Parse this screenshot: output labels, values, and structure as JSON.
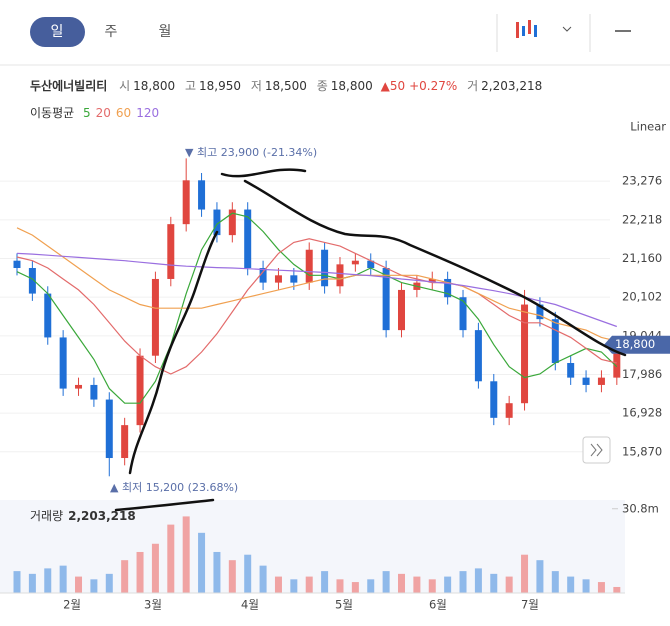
{
  "tabs": [
    "일",
    "주",
    "월"
  ],
  "quote": {
    "name": "두산에너빌리티",
    "open_label": "시",
    "open": "18,800",
    "high_label": "고",
    "high": "18,950",
    "low_label": "저",
    "low": "18,500",
    "close_label": "종",
    "close": "18,800",
    "change": "▲50",
    "change_pct": "+0.27%",
    "volume_label": "거",
    "volume": "2,203,218"
  },
  "ma_label": "이동평균",
  "scale_label": "Linear",
  "chart_data": {
    "type": "candlestick",
    "ylim": [
      14688,
      24403
    ],
    "yticks": [
      {
        "value": 23276,
        "label": "23,276"
      },
      {
        "value": 22218,
        "label": "22,218"
      },
      {
        "value": 21160,
        "label": "21,160"
      },
      {
        "value": 20102,
        "label": "20,102"
      },
      {
        "value": 19044,
        "label": "19,044"
      },
      {
        "value": 17986,
        "label": "17,986"
      },
      {
        "value": 16928,
        "label": "16,928"
      },
      {
        "value": 15870,
        "label": "15,870"
      }
    ],
    "grid": true,
    "up_color": "#e0463f",
    "down_color": "#1f6fd6",
    "x_labels": [
      {
        "value": 3.58,
        "label": "2월"
      },
      {
        "value": 8.84,
        "label": "3월"
      },
      {
        "value": 15.15,
        "label": "4월"
      },
      {
        "value": 21.26,
        "label": "5월"
      },
      {
        "value": 27.37,
        "label": "6월"
      },
      {
        "value": 33.35,
        "label": "7월"
      }
    ],
    "candles": {
      "open": [
        21100,
        20900,
        20200,
        19000,
        17600,
        17700,
        17300,
        15700,
        16600,
        18500,
        20600,
        22100,
        23300,
        22500,
        21800,
        22500,
        20900,
        20500,
        20700,
        20500,
        21400,
        20400,
        21000,
        21100,
        20900,
        19200,
        20300,
        20500,
        20600,
        20100,
        19200,
        17800,
        16800,
        17200,
        19900,
        19500,
        18300,
        17900,
        17700,
        17900
      ],
      "high": [
        21300,
        21100,
        20400,
        19200,
        17900,
        17900,
        17500,
        16800,
        18700,
        20800,
        22300,
        23900,
        23500,
        22700,
        22700,
        22700,
        21100,
        20900,
        20900,
        21600,
        21600,
        21200,
        21300,
        21300,
        21100,
        20500,
        20700,
        20800,
        20800,
        20300,
        19400,
        18000,
        17400,
        20300,
        20100,
        19700,
        18500,
        18100,
        18100,
        18950
      ],
      "low": [
        20700,
        20000,
        18800,
        17400,
        17400,
        17100,
        15200,
        15500,
        16400,
        18300,
        20400,
        21900,
        22300,
        21600,
        21600,
        20700,
        20300,
        20300,
        20300,
        20300,
        20200,
        20200,
        20800,
        20700,
        19000,
        19000,
        20100,
        20300,
        19900,
        19000,
        17600,
        16600,
        16600,
        17000,
        19300,
        18100,
        17700,
        17500,
        17500,
        17700
      ],
      "close": [
        20900,
        20200,
        19000,
        17600,
        17700,
        17300,
        15700,
        16600,
        18500,
        20600,
        22100,
        23300,
        22500,
        21800,
        22500,
        20900,
        20500,
        20700,
        20500,
        21400,
        20400,
        21000,
        21100,
        20900,
        19200,
        20300,
        20500,
        20600,
        20100,
        19200,
        17800,
        16800,
        17200,
        19900,
        19500,
        18300,
        17900,
        17700,
        17900,
        18800
      ]
    },
    "series": [
      {
        "name": "5",
        "color": "#3aa83a",
        "values": [
          20800,
          20600,
          20200,
          19600,
          19000,
          18400,
          17600,
          17200,
          17200,
          17800,
          18800,
          20200,
          21400,
          22100,
          22400,
          22300,
          21900,
          21400,
          21000,
          20700,
          20700,
          20600,
          20700,
          20900,
          20700,
          20500,
          20400,
          20300,
          20200,
          20000,
          19500,
          18800,
          18200,
          17900,
          18000,
          18300,
          18500,
          18700,
          18600,
          18200
        ]
      },
      {
        "name": "20",
        "color": "#e36b6b",
        "values": [
          21200,
          21100,
          20900,
          20600,
          20300,
          19900,
          19400,
          18900,
          18500,
          18200,
          18000,
          18200,
          18600,
          19100,
          19700,
          20300,
          20800,
          21300,
          21600,
          21700,
          21600,
          21500,
          21300,
          21100,
          20900,
          20700,
          20600,
          20500,
          20500,
          20400,
          20200,
          19900,
          19600,
          19400,
          19400,
          19200,
          19000,
          18700,
          18400,
          18300
        ]
      },
      {
        "name": "60",
        "color": "#f0a050",
        "values": [
          22000,
          21800,
          21500,
          21200,
          20900,
          20600,
          20300,
          20100,
          19900,
          19800,
          19800,
          19800,
          19800,
          19900,
          20000,
          20100,
          20200,
          20300,
          20400,
          20500,
          20600,
          20600,
          20700,
          20700,
          20700,
          20700,
          20700,
          20600,
          20500,
          20400,
          20200,
          20000,
          19800,
          19700,
          19600,
          19400,
          19300,
          19200,
          19000,
          18900
        ]
      },
      {
        "name": "120",
        "color": "#9a6fe0",
        "values": [
          21300,
          21280,
          21250,
          21220,
          21190,
          21160,
          21130,
          21100,
          21060,
          21020,
          20980,
          20950,
          20930,
          20910,
          20900,
          20880,
          20860,
          20840,
          20820,
          20800,
          20780,
          20750,
          20720,
          20690,
          20650,
          20600,
          20560,
          20520,
          20480,
          20420,
          20350,
          20280,
          20200,
          20100,
          20000,
          19900,
          19750,
          19600,
          19450,
          19300
        ]
      }
    ],
    "last_price": {
      "value": 18800,
      "label": "18,800"
    },
    "annotations": {
      "high": "▼ 최고 23,900 (-21.34%)",
      "low": "▲ 최저 15,200 (23.68%)"
    },
    "volume": {
      "label": "거래량",
      "value_text": "2,203,218",
      "ylim": [
        0,
        34000000
      ],
      "yticks": [
        {
          "value": 30800000,
          "label": "30.8m"
        }
      ],
      "up_color": "#f0a3a3",
      "down_color": "#8fb9ea",
      "values": [
        8000000,
        7000000,
        9000000,
        10000000,
        6000000,
        5000000,
        7000000,
        12000000,
        15000000,
        18000000,
        25000000,
        28000000,
        22000000,
        15000000,
        12000000,
        14000000,
        10000000,
        6000000,
        5000000,
        6000000,
        8000000,
        5000000,
        4000000,
        5000000,
        8000000,
        7000000,
        6000000,
        5000000,
        6000000,
        8000000,
        9000000,
        7000000,
        6000000,
        14000000,
        12000000,
        8000000,
        6000000,
        5000000,
        4000000,
        2203218
      ]
    }
  }
}
